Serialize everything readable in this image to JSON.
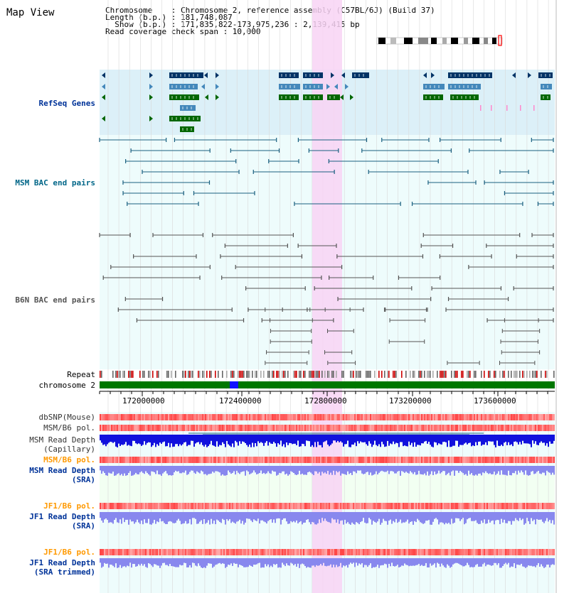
{
  "view_title": "Map View",
  "header": {
    "line1": "Chromosome    : Chromosome 2, reference assembly (C57BL/6J) (Build 37)",
    "line2": "Length (b.p.) : 181,748,087",
    "line3": "  Show (b.p.) : 171,835,822-173,975,236 : 2,139,415 bp",
    "line4": "Read coverage check span : 10,000"
  },
  "tracks": {
    "refseq": "RefSeq Genes",
    "msm_bac": "MSM BAC end pairs",
    "b6n_bac": "B6N BAC end pairs",
    "repeat": "Repeat",
    "chromosome": "chromosome 2",
    "dbsnp": "dbSNP(Mouse)",
    "msm_b6_pol": "MSM/B6 pol.",
    "msm_depth_cap_1": "MSM Read Depth",
    "msm_depth_cap_2": "(Capillary)",
    "msm_b6_pol_2": "MSM/B6 pol.",
    "msm_depth_sra_1": "MSM Read Depth",
    "msm_depth_sra_2": "(SRA)",
    "jf1_b6_pol": "JF1/B6 pol.",
    "jf1_depth_sra_1": "JF1 Read Depth",
    "jf1_depth_sra_2": "(SRA)",
    "jf1_b6_pol_2": "JF1/B6 pol.",
    "jf1_depth_trim_1": "JF1 Read Depth",
    "jf1_depth_trim_2": "(SRA trimmed)"
  },
  "ruler": {
    "ticks": [
      "172000000",
      "172400000",
      "172800000",
      "173200000",
      "173600000"
    ]
  },
  "colors": {
    "refseq_bg": "#dcf0f8",
    "track_bg": "#eefcfc",
    "highlight": "#f8d4f4",
    "gene_dark": "#003366",
    "gene_mid": "#4488bb",
    "gene_green": "#006600",
    "msm_line": "#1a6080",
    "b6n_line": "#555555",
    "chrom_bar": "#007700",
    "depth_blue": "#1111dd",
    "depth_light": "#8888ee",
    "label_blue": "#003399",
    "label_orange": "#ff9900",
    "label_teal": "#006688",
    "label_gray": "#555555"
  }
}
